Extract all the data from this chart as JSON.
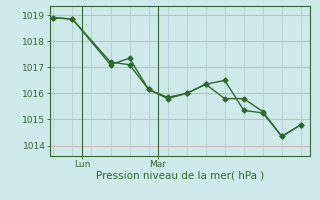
{
  "line1_x": [
    0,
    1,
    3,
    4,
    5,
    6,
    7,
    8,
    9,
    10,
    11,
    12,
    13
  ],
  "line1_y": [
    1018.9,
    1018.85,
    1017.2,
    1017.1,
    1016.15,
    1015.8,
    1016.0,
    1016.35,
    1016.5,
    1015.35,
    1015.25,
    1014.35,
    1014.8
  ],
  "line2_x": [
    0,
    1,
    3,
    4,
    5,
    6,
    7,
    8,
    9,
    10,
    11,
    12,
    13
  ],
  "line2_y": [
    1018.9,
    1018.85,
    1017.1,
    1017.35,
    1016.15,
    1015.85,
    1016.0,
    1016.35,
    1015.8,
    1015.8,
    1015.3,
    1014.35,
    1014.8
  ],
  "line_color": "#2d6a2d",
  "bg_color": "#ceeaea",
  "grid_h_color": "#d4b8b8",
  "grid_v_color": "#b8cccc",
  "axis_color": "#336633",
  "ylim": [
    1013.6,
    1019.35
  ],
  "yticks": [
    1014,
    1015,
    1016,
    1017,
    1018,
    1019
  ],
  "xlabel": "Pression niveau de la mer( hPa )",
  "xlabel_color": "#2d6a2d",
  "tick_label_color": "#336633",
  "day_labels": [
    [
      "Lun",
      1.5
    ],
    [
      "Mar",
      5.5
    ]
  ],
  "n_vgrid": 13,
  "xlim": [
    -0.2,
    13.5
  ],
  "marker": "D",
  "markersize": 2.5,
  "linewidth": 1.0,
  "tick_fontsize": 6.5,
  "xlabel_fontsize": 7.5
}
